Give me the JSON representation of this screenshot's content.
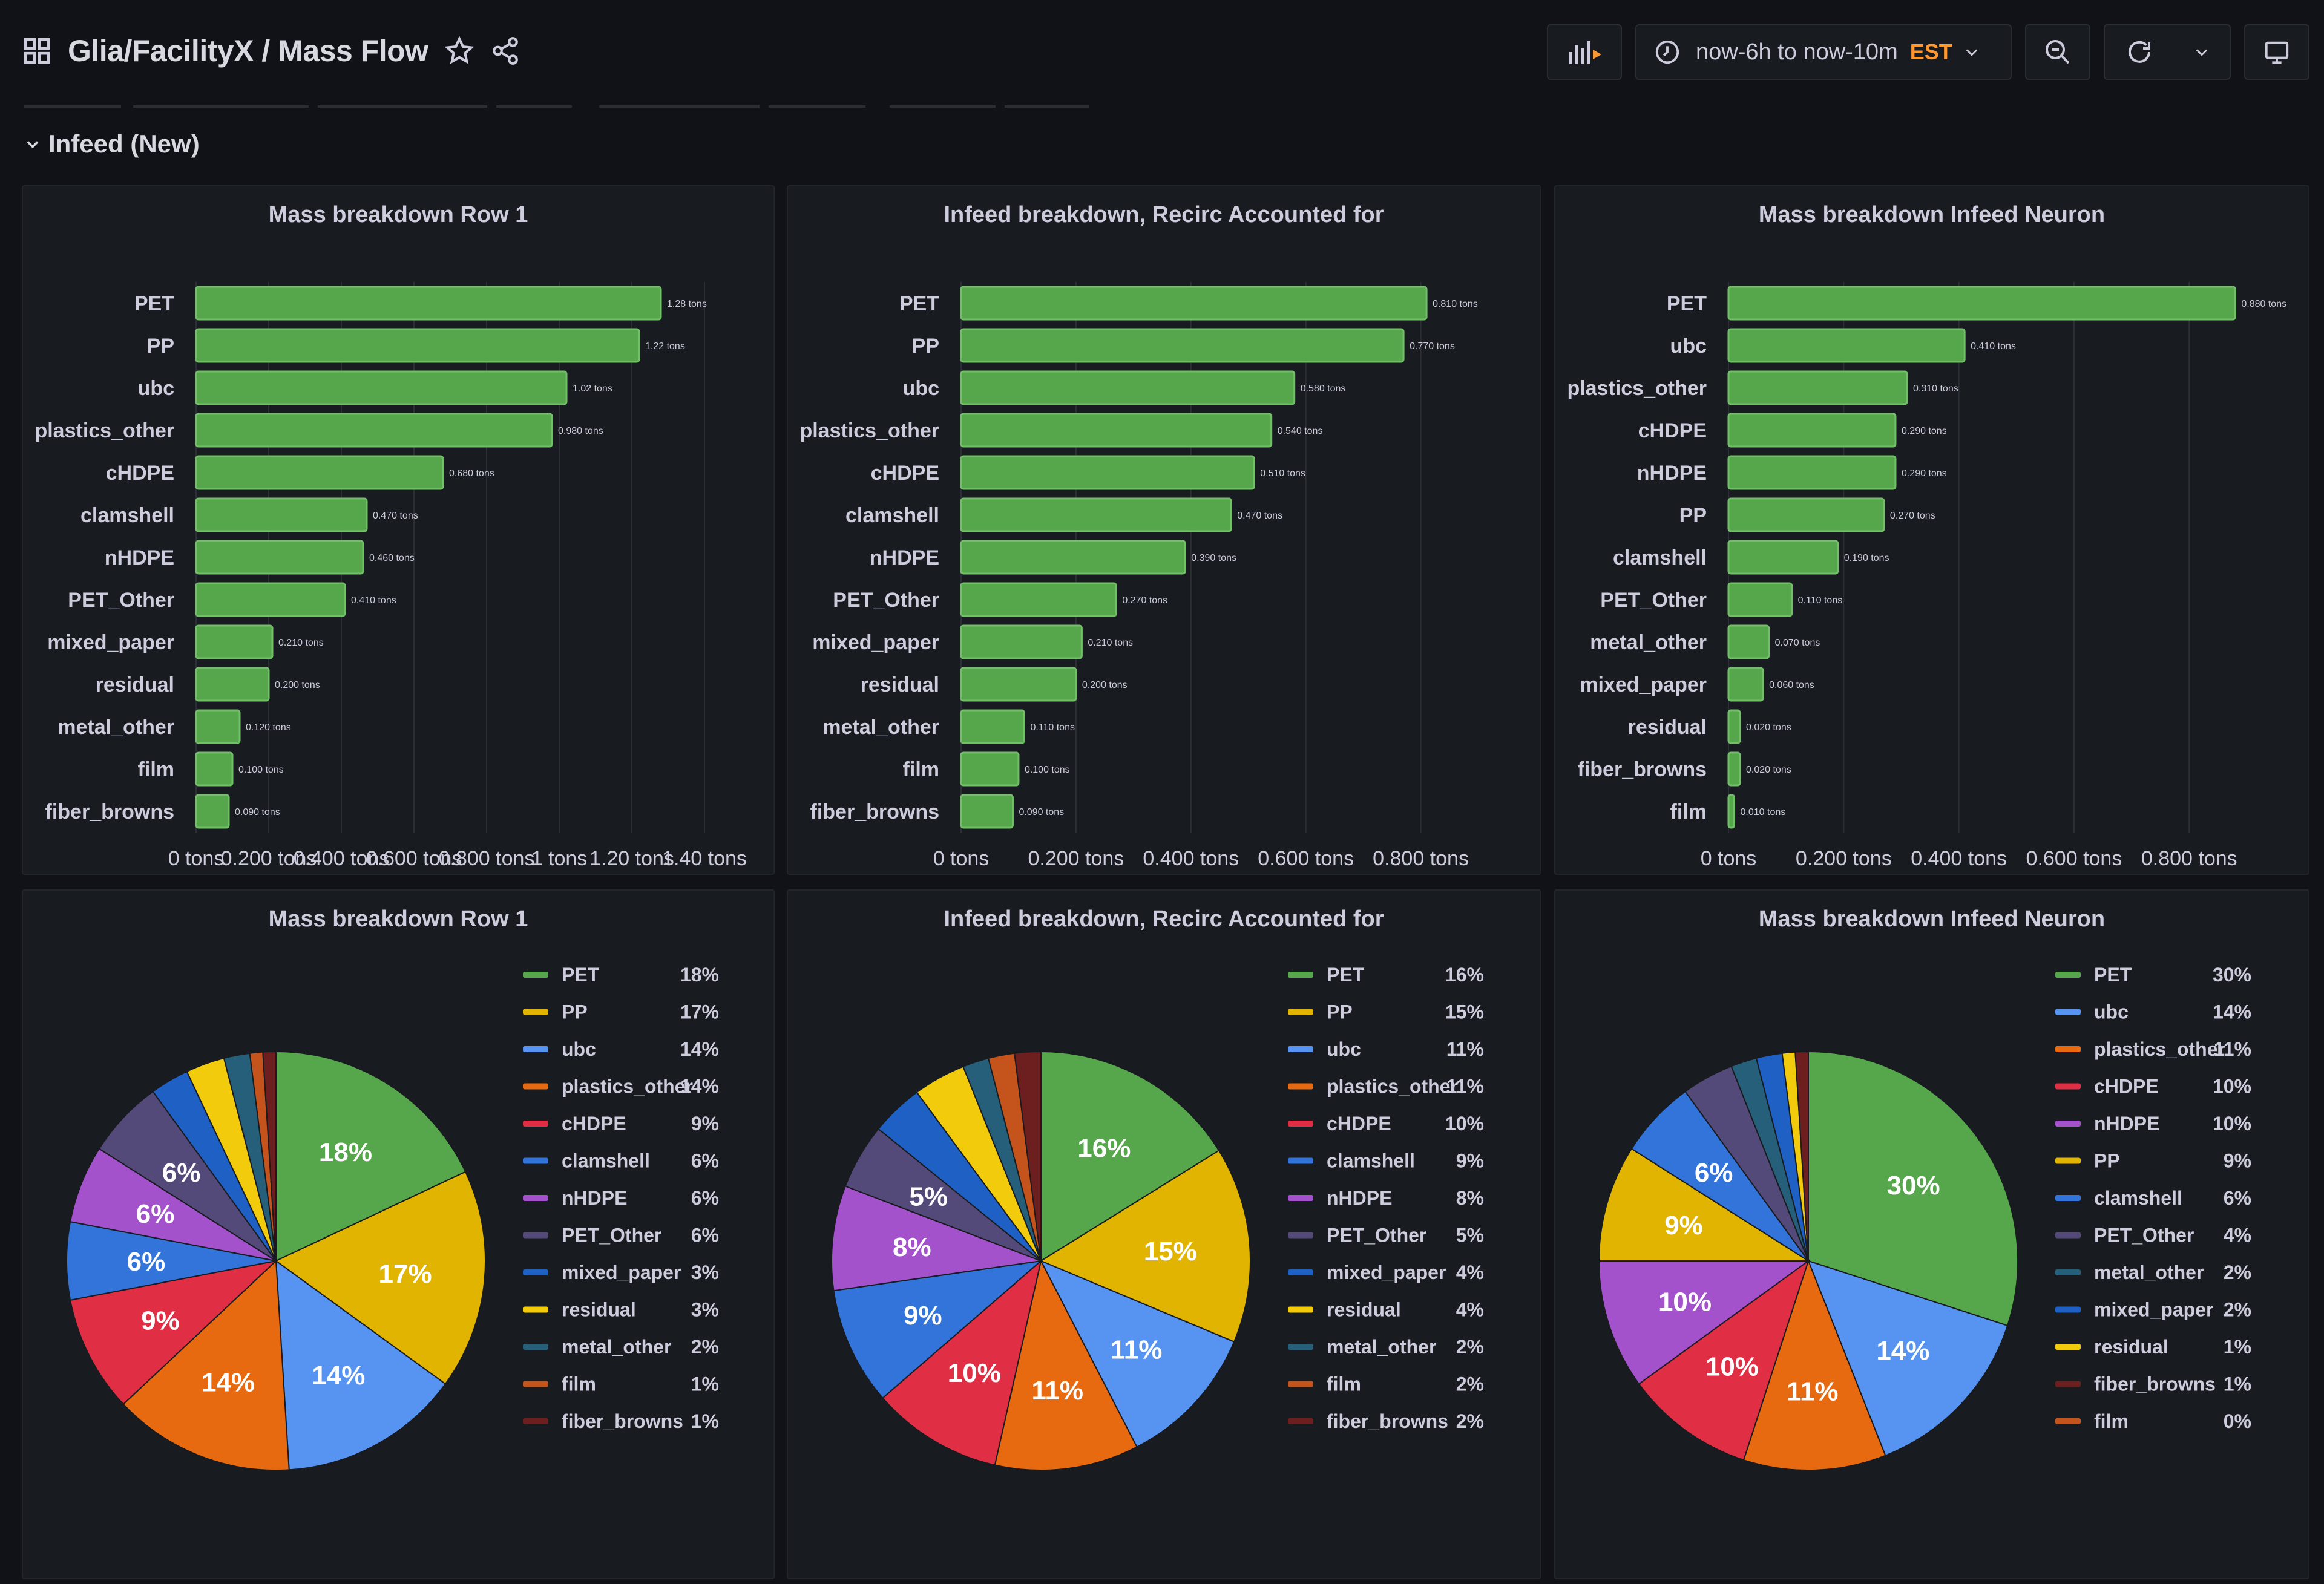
{
  "header": {
    "title": "Glia/FacilityX  / Mass Flow",
    "time_range": "now-6h to now-10m",
    "timezone": "EST"
  },
  "row": {
    "title": "Infeed (New)"
  },
  "colors": {
    "bar": "#56a64b",
    "PET": "#56a64b",
    "PP": "#e0b400",
    "ubc": "#5794f2",
    "plastics_other": "#e86a10",
    "cHDPE": "#e02f44",
    "clamshell": "#3274d9",
    "nHDPE": "#a352cc",
    "PET_Other": "#544a7a",
    "mixed_paper": "#1f60c4",
    "residual": "#f2cc0c",
    "metal_other": "#265f7a",
    "film": "#c4541b",
    "fiber_browns": "#6d1f1f"
  },
  "panels": [
    {
      "bar_title": "Mass breakdown Row 1",
      "pie_title": "Mass breakdown Row 1",
      "bar_max": 1.5,
      "axis_labels": [
        "0 tons",
        "0.200 tons",
        "0.400 tons",
        "0.600 tons",
        "0.800 tons",
        "1 tons",
        "1.20 tons",
        "1.40 tons"
      ],
      "bars": [
        {
          "label": "PET",
          "value": 1.28,
          "text": "1.28 tons"
        },
        {
          "label": "PP",
          "value": 1.22,
          "text": "1.22 tons"
        },
        {
          "label": "ubc",
          "value": 1.02,
          "text": "1.02 tons"
        },
        {
          "label": "plastics_other",
          "value": 0.98,
          "text": "0.980 tons"
        },
        {
          "label": "cHDPE",
          "value": 0.68,
          "text": "0.680 tons"
        },
        {
          "label": "clamshell",
          "value": 0.47,
          "text": "0.470 tons"
        },
        {
          "label": "nHDPE",
          "value": 0.46,
          "text": "0.460 tons"
        },
        {
          "label": "PET_Other",
          "value": 0.41,
          "text": "0.410 tons"
        },
        {
          "label": "mixed_paper",
          "value": 0.21,
          "text": "0.210 tons"
        },
        {
          "label": "residual",
          "value": 0.2,
          "text": "0.200 tons"
        },
        {
          "label": "metal_other",
          "value": 0.12,
          "text": "0.120 tons"
        },
        {
          "label": "film",
          "value": 0.1,
          "text": "0.100 tons"
        },
        {
          "label": "fiber_browns",
          "value": 0.09,
          "text": "0.090 tons"
        }
      ],
      "pie": [
        {
          "name": "PET",
          "pct": 18
        },
        {
          "name": "PP",
          "pct": 17
        },
        {
          "name": "ubc",
          "pct": 14
        },
        {
          "name": "plastics_other",
          "pct": 14
        },
        {
          "name": "cHDPE",
          "pct": 9
        },
        {
          "name": "clamshell",
          "pct": 6
        },
        {
          "name": "nHDPE",
          "pct": 6
        },
        {
          "name": "PET_Other",
          "pct": 6
        },
        {
          "name": "mixed_paper",
          "pct": 3
        },
        {
          "name": "residual",
          "pct": 3
        },
        {
          "name": "metal_other",
          "pct": 2
        },
        {
          "name": "film",
          "pct": 1
        },
        {
          "name": "fiber_browns",
          "pct": 1
        }
      ]
    },
    {
      "bar_title": "Infeed breakdown, Recirc Accounted for",
      "pie_title": "Infeed breakdown, Recirc Accounted for",
      "bar_max": 0.95,
      "axis_labels": [
        "0 tons",
        "0.200 tons",
        "0.400 tons",
        "0.600 tons",
        "0.800 tons"
      ],
      "bars": [
        {
          "label": "PET",
          "value": 0.81,
          "text": "0.810 tons"
        },
        {
          "label": "PP",
          "value": 0.77,
          "text": "0.770 tons"
        },
        {
          "label": "ubc",
          "value": 0.58,
          "text": "0.580 tons"
        },
        {
          "label": "plastics_other",
          "value": 0.54,
          "text": "0.540 tons"
        },
        {
          "label": "cHDPE",
          "value": 0.51,
          "text": "0.510 tons"
        },
        {
          "label": "clamshell",
          "value": 0.47,
          "text": "0.470 tons"
        },
        {
          "label": "nHDPE",
          "value": 0.39,
          "text": "0.390 tons"
        },
        {
          "label": "PET_Other",
          "value": 0.27,
          "text": "0.270 tons"
        },
        {
          "label": "mixed_paper",
          "value": 0.21,
          "text": "0.210 tons"
        },
        {
          "label": "residual",
          "value": 0.2,
          "text": "0.200 tons"
        },
        {
          "label": "metal_other",
          "value": 0.11,
          "text": "0.110 tons"
        },
        {
          "label": "film",
          "value": 0.1,
          "text": "0.100 tons"
        },
        {
          "label": "fiber_browns",
          "value": 0.09,
          "text": "0.090 tons"
        }
      ],
      "pie": [
        {
          "name": "PET",
          "pct": 16
        },
        {
          "name": "PP",
          "pct": 15
        },
        {
          "name": "ubc",
          "pct": 11
        },
        {
          "name": "plastics_other",
          "pct": 11
        },
        {
          "name": "cHDPE",
          "pct": 10
        },
        {
          "name": "clamshell",
          "pct": 9
        },
        {
          "name": "nHDPE",
          "pct": 8
        },
        {
          "name": "PET_Other",
          "pct": 5
        },
        {
          "name": "mixed_paper",
          "pct": 4
        },
        {
          "name": "residual",
          "pct": 4
        },
        {
          "name": "metal_other",
          "pct": 2
        },
        {
          "name": "film",
          "pct": 2
        },
        {
          "name": "fiber_browns",
          "pct": 2
        }
      ]
    },
    {
      "bar_title": "Mass breakdown Infeed Neuron",
      "pie_title": "Mass breakdown Infeed Neuron",
      "bar_max": 0.95,
      "axis_labels": [
        "0 tons",
        "0.200 tons",
        "0.400 tons",
        "0.600 tons",
        "0.800 tons"
      ],
      "bars": [
        {
          "label": "PET",
          "value": 0.88,
          "text": "0.880 tons"
        },
        {
          "label": "ubc",
          "value": 0.41,
          "text": "0.410 tons"
        },
        {
          "label": "plastics_other",
          "value": 0.31,
          "text": "0.310 tons"
        },
        {
          "label": "cHDPE",
          "value": 0.29,
          "text": "0.290 tons"
        },
        {
          "label": "nHDPE",
          "value": 0.29,
          "text": "0.290 tons"
        },
        {
          "label": "PP",
          "value": 0.27,
          "text": "0.270 tons"
        },
        {
          "label": "clamshell",
          "value": 0.19,
          "text": "0.190 tons"
        },
        {
          "label": "PET_Other",
          "value": 0.11,
          "text": "0.110 tons"
        },
        {
          "label": "metal_other",
          "value": 0.07,
          "text": "0.070 tons"
        },
        {
          "label": "mixed_paper",
          "value": 0.06,
          "text": "0.060 tons"
        },
        {
          "label": "residual",
          "value": 0.02,
          "text": "0.020 tons"
        },
        {
          "label": "fiber_browns",
          "value": 0.02,
          "text": "0.020 tons"
        },
        {
          "label": "film",
          "value": 0.01,
          "text": "0.010 tons"
        }
      ],
      "pie": [
        {
          "name": "PET",
          "pct": 30
        },
        {
          "name": "ubc",
          "pct": 14
        },
        {
          "name": "plastics_other",
          "pct": 11
        },
        {
          "name": "cHDPE",
          "pct": 10
        },
        {
          "name": "nHDPE",
          "pct": 10
        },
        {
          "name": "PP",
          "pct": 9
        },
        {
          "name": "clamshell",
          "pct": 6
        },
        {
          "name": "PET_Other",
          "pct": 4
        },
        {
          "name": "metal_other",
          "pct": 2
        },
        {
          "name": "mixed_paper",
          "pct": 2
        },
        {
          "name": "residual",
          "pct": 1
        },
        {
          "name": "fiber_browns",
          "pct": 1
        },
        {
          "name": "film",
          "pct": 0
        }
      ]
    }
  ],
  "chart_data": [
    {
      "type": "bar",
      "title": "Mass breakdown Row 1",
      "categories": [
        "PET",
        "PP",
        "ubc",
        "plastics_other",
        "cHDPE",
        "clamshell",
        "nHDPE",
        "PET_Other",
        "mixed_paper",
        "residual",
        "metal_other",
        "film",
        "fiber_browns"
      ],
      "values": [
        1.28,
        1.22,
        1.02,
        0.98,
        0.68,
        0.47,
        0.46,
        0.41,
        0.21,
        0.2,
        0.12,
        0.1,
        0.09
      ],
      "xlim": [
        0,
        1.5
      ]
    },
    {
      "type": "bar",
      "title": "Infeed breakdown, Recirc Accounted for",
      "categories": [
        "PET",
        "PP",
        "ubc",
        "plastics_other",
        "cHDPE",
        "clamshell",
        "nHDPE",
        "PET_Other",
        "mixed_paper",
        "residual",
        "metal_other",
        "film",
        "fiber_browns"
      ],
      "values": [
        0.81,
        0.77,
        0.58,
        0.54,
        0.51,
        0.47,
        0.39,
        0.27,
        0.21,
        0.2,
        0.11,
        0.1,
        0.09
      ],
      "xlim": [
        0,
        0.95
      ]
    },
    {
      "type": "bar",
      "title": "Mass breakdown Infeed Neuron",
      "categories": [
        "PET",
        "ubc",
        "plastics_other",
        "cHDPE",
        "nHDPE",
        "PP",
        "clamshell",
        "PET_Other",
        "metal_other",
        "mixed_paper",
        "residual",
        "fiber_browns",
        "film"
      ],
      "values": [
        0.88,
        0.41,
        0.31,
        0.29,
        0.29,
        0.27,
        0.19,
        0.11,
        0.07,
        0.06,
        0.02,
        0.02,
        0.01
      ],
      "xlim": [
        0,
        0.95
      ]
    },
    {
      "type": "pie",
      "title": "Mass breakdown Row 1",
      "categories": [
        "PET",
        "PP",
        "ubc",
        "plastics_other",
        "cHDPE",
        "clamshell",
        "nHDPE",
        "PET_Other",
        "mixed_paper",
        "residual",
        "metal_other",
        "film",
        "fiber_browns"
      ],
      "values": [
        18,
        17,
        14,
        14,
        9,
        6,
        6,
        6,
        3,
        3,
        2,
        1,
        1
      ]
    },
    {
      "type": "pie",
      "title": "Infeed breakdown, Recirc Accounted for",
      "categories": [
        "PET",
        "PP",
        "ubc",
        "plastics_other",
        "cHDPE",
        "clamshell",
        "nHDPE",
        "PET_Other",
        "mixed_paper",
        "residual",
        "metal_other",
        "film",
        "fiber_browns"
      ],
      "values": [
        16,
        15,
        11,
        11,
        10,
        9,
        8,
        5,
        4,
        4,
        2,
        2,
        2
      ]
    },
    {
      "type": "pie",
      "title": "Mass breakdown Infeed Neuron",
      "categories": [
        "PET",
        "ubc",
        "plastics_other",
        "cHDPE",
        "nHDPE",
        "PP",
        "clamshell",
        "PET_Other",
        "metal_other",
        "mixed_paper",
        "residual",
        "fiber_browns",
        "film"
      ],
      "values": [
        30,
        14,
        11,
        10,
        10,
        9,
        6,
        4,
        2,
        2,
        1,
        1,
        0
      ]
    }
  ]
}
